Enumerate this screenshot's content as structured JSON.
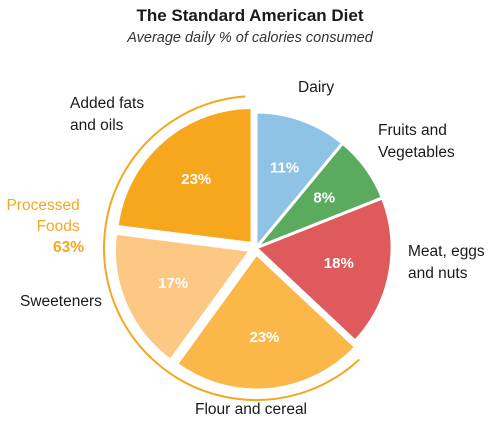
{
  "chart_data": {
    "type": "pie",
    "title": "The Standard American Diet",
    "subtitle": "Average daily % of calories consumed",
    "unit": "%",
    "slices": [
      {
        "label": "Dairy",
        "value": 11,
        "value_label": "11%",
        "color": "#8fc3e6",
        "exploded": false
      },
      {
        "label": "Fruits and Vegetables",
        "value": 8,
        "value_label": "8%",
        "color": "#5aab5e",
        "exploded": false
      },
      {
        "label": "Meat, eggs and nuts",
        "value": 18,
        "value_label": "18%",
        "color": "#de5a5c",
        "exploded": false
      },
      {
        "label": "Flour and cereal",
        "value": 23,
        "value_label": "23%",
        "color": "#fbb747",
        "exploded": true
      },
      {
        "label": "Sweeteners",
        "value": 17,
        "value_label": "17%",
        "color": "#fcc883",
        "exploded": true
      },
      {
        "label": "Added fats and oils",
        "value": 23,
        "value_label": "23%",
        "color": "#f6a71d",
        "exploded": true
      }
    ],
    "group": {
      "label": "Processed Foods",
      "value_label": "63%",
      "members": [
        "Flour and cereal",
        "Sweeteners",
        "Added fats and oils"
      ],
      "color": "#f5a623"
    }
  }
}
